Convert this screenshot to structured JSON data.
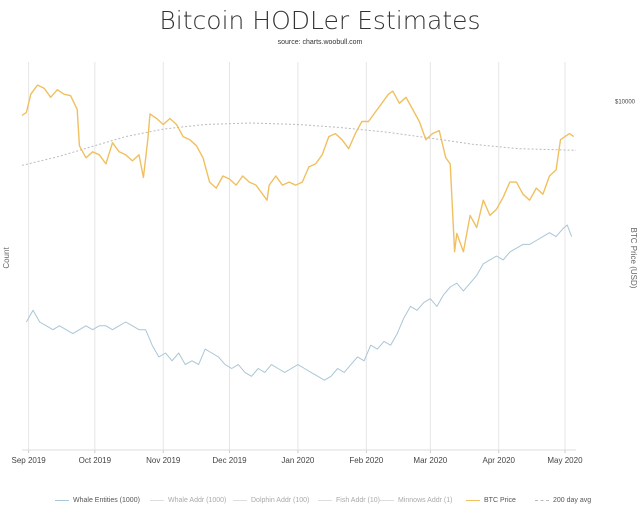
{
  "title": "Bitcoin HODLer Estimates",
  "subtitle": "source: charts.woobull.com",
  "chart_data": {
    "type": "line",
    "title": "Bitcoin HODLer Estimates",
    "subtitle": "source: charts.woobull.com",
    "ylabel_left": "Count",
    "ylabel_right": "BTC Price (USD)",
    "x_ticks": [
      "Sep 2019",
      "Oct 2019",
      "Nov 2019",
      "Dec 2019",
      "Jan 2020",
      "Feb 2020",
      "Mar 2020",
      "Apr 2020",
      "May 2020"
    ],
    "x_range": [
      "2019-08-29",
      "2020-05-06"
    ],
    "right_axis_ticks": [
      {
        "label": "$10000",
        "value": 10000
      }
    ],
    "right_axis_range": [
      4000,
      11000
    ],
    "left_axis_range": [
      0,
      1
    ],
    "grid": "vertical",
    "legend_position": "bottom",
    "series": [
      {
        "name": "Whale Entities (1000)",
        "color": "#a9c6d6",
        "axis": "left",
        "visible": true,
        "points": [
          [
            "2019-08-31",
            0.33
          ],
          [
            "2019-09-03",
            0.36
          ],
          [
            "2019-09-06",
            0.33
          ],
          [
            "2019-09-09",
            0.32
          ],
          [
            "2019-09-12",
            0.31
          ],
          [
            "2019-09-15",
            0.32
          ],
          [
            "2019-09-18",
            0.31
          ],
          [
            "2019-09-21",
            0.3
          ],
          [
            "2019-09-24",
            0.31
          ],
          [
            "2019-09-27",
            0.32
          ],
          [
            "2019-09-30",
            0.31
          ],
          [
            "2019-10-03",
            0.32
          ],
          [
            "2019-10-06",
            0.32
          ],
          [
            "2019-10-09",
            0.31
          ],
          [
            "2019-10-12",
            0.32
          ],
          [
            "2019-10-15",
            0.33
          ],
          [
            "2019-10-18",
            0.32
          ],
          [
            "2019-10-21",
            0.31
          ],
          [
            "2019-10-24",
            0.31
          ],
          [
            "2019-10-27",
            0.27
          ],
          [
            "2019-10-30",
            0.24
          ],
          [
            "2019-11-02",
            0.25
          ],
          [
            "2019-11-05",
            0.23
          ],
          [
            "2019-11-08",
            0.25
          ],
          [
            "2019-11-11",
            0.22
          ],
          [
            "2019-11-14",
            0.23
          ],
          [
            "2019-11-17",
            0.22
          ],
          [
            "2019-11-20",
            0.26
          ],
          [
            "2019-11-23",
            0.25
          ],
          [
            "2019-11-26",
            0.24
          ],
          [
            "2019-11-29",
            0.22
          ],
          [
            "2019-12-02",
            0.21
          ],
          [
            "2019-12-05",
            0.22
          ],
          [
            "2019-12-08",
            0.2
          ],
          [
            "2019-12-11",
            0.19
          ],
          [
            "2019-12-14",
            0.21
          ],
          [
            "2019-12-17",
            0.2
          ],
          [
            "2019-12-20",
            0.22
          ],
          [
            "2019-12-23",
            0.21
          ],
          [
            "2019-12-26",
            0.2
          ],
          [
            "2019-12-29",
            0.21
          ],
          [
            "2020-01-01",
            0.22
          ],
          [
            "2020-01-04",
            0.21
          ],
          [
            "2020-01-07",
            0.2
          ],
          [
            "2020-01-10",
            0.19
          ],
          [
            "2020-01-13",
            0.18
          ],
          [
            "2020-01-16",
            0.19
          ],
          [
            "2020-01-19",
            0.21
          ],
          [
            "2020-01-22",
            0.2
          ],
          [
            "2020-01-25",
            0.22
          ],
          [
            "2020-01-28",
            0.24
          ],
          [
            "2020-01-31",
            0.23
          ],
          [
            "2020-02-03",
            0.27
          ],
          [
            "2020-02-06",
            0.26
          ],
          [
            "2020-02-09",
            0.28
          ],
          [
            "2020-02-12",
            0.27
          ],
          [
            "2020-02-15",
            0.3
          ],
          [
            "2020-02-18",
            0.34
          ],
          [
            "2020-02-21",
            0.37
          ],
          [
            "2020-02-24",
            0.36
          ],
          [
            "2020-02-27",
            0.38
          ],
          [
            "2020-03-01",
            0.39
          ],
          [
            "2020-03-04",
            0.37
          ],
          [
            "2020-03-07",
            0.4
          ],
          [
            "2020-03-10",
            0.42
          ],
          [
            "2020-03-13",
            0.43
          ],
          [
            "2020-03-16",
            0.41
          ],
          [
            "2020-03-19",
            0.43
          ],
          [
            "2020-03-22",
            0.45
          ],
          [
            "2020-03-25",
            0.48
          ],
          [
            "2020-03-28",
            0.49
          ],
          [
            "2020-03-31",
            0.5
          ],
          [
            "2020-04-03",
            0.49
          ],
          [
            "2020-04-06",
            0.51
          ],
          [
            "2020-04-09",
            0.52
          ],
          [
            "2020-04-12",
            0.53
          ],
          [
            "2020-04-15",
            0.53
          ],
          [
            "2020-04-18",
            0.54
          ],
          [
            "2020-04-21",
            0.55
          ],
          [
            "2020-04-24",
            0.56
          ],
          [
            "2020-04-27",
            0.55
          ],
          [
            "2020-04-30",
            0.57
          ],
          [
            "2020-05-02",
            0.58
          ],
          [
            "2020-05-04",
            0.55
          ]
        ]
      },
      {
        "name": "Whale Addr (1000)",
        "color": "#cccccc",
        "axis": "left",
        "visible": false,
        "points": []
      },
      {
        "name": "Dolphin Addr (100)",
        "color": "#cccccc",
        "axis": "left",
        "visible": false,
        "points": []
      },
      {
        "name": "Fish Addr (10)",
        "color": "#cccccc",
        "axis": "left",
        "visible": false,
        "points": []
      },
      {
        "name": "Minnows Addr (1)",
        "color": "#cccccc",
        "axis": "left",
        "visible": false,
        "points": []
      },
      {
        "name": "BTC Price",
        "color": "#f0c060",
        "axis": "right",
        "visible": true,
        "points": [
          [
            "2019-08-29",
            9500
          ],
          [
            "2019-08-31",
            9600
          ],
          [
            "2019-09-02",
            10200
          ],
          [
            "2019-09-05",
            10500
          ],
          [
            "2019-09-08",
            10400
          ],
          [
            "2019-09-11",
            10100
          ],
          [
            "2019-09-14",
            10350
          ],
          [
            "2019-09-17",
            10200
          ],
          [
            "2019-09-20",
            10150
          ],
          [
            "2019-09-23",
            9700
          ],
          [
            "2019-09-24",
            8500
          ],
          [
            "2019-09-27",
            8100
          ],
          [
            "2019-09-30",
            8300
          ],
          [
            "2019-10-03",
            8200
          ],
          [
            "2019-10-06",
            7900
          ],
          [
            "2019-10-09",
            8600
          ],
          [
            "2019-10-12",
            8300
          ],
          [
            "2019-10-15",
            8200
          ],
          [
            "2019-10-18",
            8000
          ],
          [
            "2019-10-21",
            8200
          ],
          [
            "2019-10-23",
            7450
          ],
          [
            "2019-10-25",
            8700
          ],
          [
            "2019-10-26",
            9550
          ],
          [
            "2019-10-29",
            9400
          ],
          [
            "2019-11-01",
            9200
          ],
          [
            "2019-11-04",
            9400
          ],
          [
            "2019-11-07",
            9200
          ],
          [
            "2019-11-10",
            8800
          ],
          [
            "2019-11-13",
            8700
          ],
          [
            "2019-11-16",
            8500
          ],
          [
            "2019-11-19",
            8100
          ],
          [
            "2019-11-22",
            7300
          ],
          [
            "2019-11-25",
            7100
          ],
          [
            "2019-11-28",
            7500
          ],
          [
            "2019-12-01",
            7400
          ],
          [
            "2019-12-04",
            7200
          ],
          [
            "2019-12-07",
            7500
          ],
          [
            "2019-12-10",
            7300
          ],
          [
            "2019-12-13",
            7200
          ],
          [
            "2019-12-16",
            6900
          ],
          [
            "2019-12-18",
            6700
          ],
          [
            "2019-12-19",
            7200
          ],
          [
            "2019-12-22",
            7500
          ],
          [
            "2019-12-25",
            7200
          ],
          [
            "2019-12-28",
            7300
          ],
          [
            "2019-12-31",
            7200
          ],
          [
            "2020-01-03",
            7300
          ],
          [
            "2020-01-06",
            7800
          ],
          [
            "2020-01-09",
            7900
          ],
          [
            "2020-01-12",
            8200
          ],
          [
            "2020-01-15",
            8800
          ],
          [
            "2020-01-18",
            8900
          ],
          [
            "2020-01-21",
            8700
          ],
          [
            "2020-01-24",
            8400
          ],
          [
            "2020-01-27",
            8900
          ],
          [
            "2020-01-30",
            9300
          ],
          [
            "2020-02-02",
            9300
          ],
          [
            "2020-02-05",
            9600
          ],
          [
            "2020-02-08",
            9900
          ],
          [
            "2020-02-11",
            10200
          ],
          [
            "2020-02-13",
            10300
          ],
          [
            "2020-02-16",
            9900
          ],
          [
            "2020-02-19",
            10100
          ],
          [
            "2020-02-22",
            9700
          ],
          [
            "2020-02-25",
            9300
          ],
          [
            "2020-02-28",
            8700
          ],
          [
            "2020-03-02",
            8900
          ],
          [
            "2020-03-05",
            9000
          ],
          [
            "2020-03-08",
            8100
          ],
          [
            "2020-03-10",
            7900
          ],
          [
            "2020-03-12",
            5000
          ],
          [
            "2020-03-13",
            5600
          ],
          [
            "2020-03-16",
            5000
          ],
          [
            "2020-03-19",
            6200
          ],
          [
            "2020-03-22",
            5800
          ],
          [
            "2020-03-25",
            6700
          ],
          [
            "2020-03-28",
            6200
          ],
          [
            "2020-03-31",
            6400
          ],
          [
            "2020-04-03",
            6800
          ],
          [
            "2020-04-06",
            7300
          ],
          [
            "2020-04-09",
            7300
          ],
          [
            "2020-04-12",
            6900
          ],
          [
            "2020-04-15",
            6700
          ],
          [
            "2020-04-18",
            7100
          ],
          [
            "2020-04-21",
            6900
          ],
          [
            "2020-04-24",
            7500
          ],
          [
            "2020-04-27",
            7700
          ],
          [
            "2020-04-29",
            8700
          ],
          [
            "2020-05-01",
            8800
          ],
          [
            "2020-05-03",
            8900
          ],
          [
            "2020-05-05",
            8800
          ]
        ]
      },
      {
        "name": "200 day avg",
        "color": "#bbbbbb",
        "axis": "right",
        "visible": true,
        "points": [
          [
            "2019-08-29",
            7850
          ],
          [
            "2019-09-15",
            8150
          ],
          [
            "2019-10-01",
            8500
          ],
          [
            "2019-10-15",
            8800
          ],
          [
            "2019-11-01",
            9050
          ],
          [
            "2019-11-20",
            9200
          ],
          [
            "2019-12-10",
            9250
          ],
          [
            "2020-01-01",
            9200
          ],
          [
            "2020-01-20",
            9100
          ],
          [
            "2020-02-10",
            8950
          ],
          [
            "2020-03-01",
            8750
          ],
          [
            "2020-03-20",
            8550
          ],
          [
            "2020-04-10",
            8400
          ],
          [
            "2020-05-06",
            8350
          ]
        ]
      }
    ]
  },
  "colors": {
    "btc_price": "#f0c060",
    "whale_entities": "#a9c6d6",
    "avg_200": "#bbbbbb",
    "grid": "#e6e6e6",
    "text": "#333333",
    "legend_text": "#666666"
  }
}
